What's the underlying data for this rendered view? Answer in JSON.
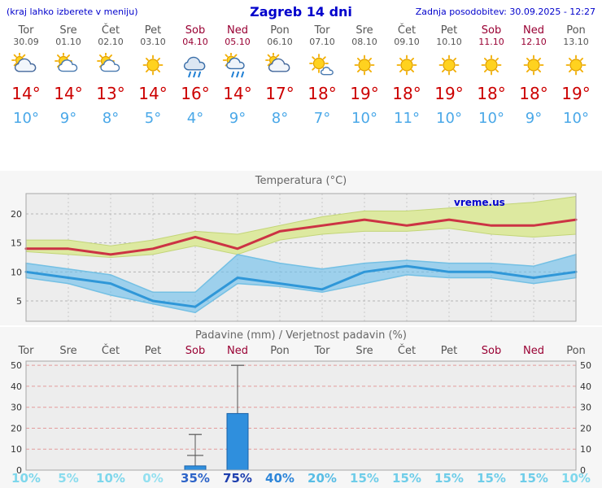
{
  "header": {
    "left_note": "(kraj lahko izberete v meniju)",
    "title": "Zagreb 14 dni",
    "last_update": "Zadnja posodobitev: 30.09.2025 - 12:27"
  },
  "colors": {
    "header_blue": "#0000cc",
    "weekday_text": "#555555",
    "weekend_text": "#990033",
    "temp_high": "#cc0000",
    "temp_low": "#4aa8e8",
    "max_line": "#cc3344",
    "max_band": "#dde9a0",
    "max_band_edge": "#c3d578",
    "min_line": "#2f97d8",
    "min_band": "rgba(108,191,235,0.62)",
    "min_band_edge": "#74c0e4",
    "bar_fill": "#2f8fdd",
    "bar_edge": "#1a62a8",
    "precip_grid": "#e39b9b",
    "chart_bg": "#f6f6f6",
    "plot_bg": "#ededed",
    "chart_title": "#666666"
  },
  "days": [
    {
      "name": "Tor",
      "date": "30.09",
      "weekend": false,
      "icon": "mostly-cloudy",
      "high": "14°",
      "low": "10°"
    },
    {
      "name": "Sre",
      "date": "01.10",
      "weekend": false,
      "icon": "partly-cloudy",
      "high": "14°",
      "low": "9°"
    },
    {
      "name": "Čet",
      "date": "02.10",
      "weekend": false,
      "icon": "partly-cloudy",
      "high": "13°",
      "low": "8°"
    },
    {
      "name": "Pet",
      "date": "03.10",
      "weekend": false,
      "icon": "sun",
      "high": "14°",
      "low": "5°"
    },
    {
      "name": "Sob",
      "date": "04.10",
      "weekend": true,
      "icon": "rain",
      "high": "16°",
      "low": "4°"
    },
    {
      "name": "Ned",
      "date": "05.10",
      "weekend": true,
      "icon": "sun-rain",
      "high": "14°",
      "low": "9°"
    },
    {
      "name": "Pon",
      "date": "06.10",
      "weekend": false,
      "icon": "mostly-cloudy",
      "high": "17°",
      "low": "8°"
    },
    {
      "name": "Tor",
      "date": "07.10",
      "weekend": false,
      "icon": "mostly-sunny",
      "high": "18°",
      "low": "7°"
    },
    {
      "name": "Sre",
      "date": "08.10",
      "weekend": false,
      "icon": "sun",
      "high": "19°",
      "low": "10°"
    },
    {
      "name": "Čet",
      "date": "09.10",
      "weekend": false,
      "icon": "sun",
      "high": "18°",
      "low": "11°"
    },
    {
      "name": "Pet",
      "date": "10.10",
      "weekend": false,
      "icon": "sun",
      "high": "19°",
      "low": "10°"
    },
    {
      "name": "Sob",
      "date": "11.10",
      "weekend": true,
      "icon": "sun",
      "high": "18°",
      "low": "10°"
    },
    {
      "name": "Ned",
      "date": "12.10",
      "weekend": true,
      "icon": "sun",
      "high": "18°",
      "low": "9°"
    },
    {
      "name": "Pon",
      "date": "13.10",
      "weekend": false,
      "icon": "sun",
      "high": "19°",
      "low": "10°"
    }
  ],
  "chart_data": [
    {
      "type": "line",
      "title": "Temperatura (°C)",
      "watermark": "vreme.us",
      "x_labels": [
        "Tor",
        "Sre",
        "Čet",
        "Pet",
        "Sob",
        "Ned",
        "Pon",
        "Tor",
        "Sre",
        "Čet",
        "Pet",
        "Sob",
        "Ned",
        "Pon"
      ],
      "ylim": [
        1.5,
        23.5
      ],
      "yticks": [
        5,
        10,
        15,
        20
      ],
      "grid": true,
      "legend": "none",
      "series": [
        {
          "name": "max_temp",
          "values": [
            14,
            14,
            13,
            14,
            16,
            14,
            17,
            18,
            19,
            18,
            19,
            18,
            18,
            19
          ]
        },
        {
          "name": "max_band_upper",
          "values": [
            15.5,
            15.5,
            14.5,
            15.5,
            17,
            16.5,
            18,
            19.5,
            20.5,
            20.5,
            21,
            21.5,
            22,
            23
          ]
        },
        {
          "name": "max_band_lower",
          "values": [
            13.5,
            13,
            12.5,
            13,
            14.5,
            13,
            15.5,
            16.5,
            17,
            17,
            17.5,
            16.5,
            16,
            16.5
          ]
        },
        {
          "name": "min_temp",
          "values": [
            10,
            9,
            8,
            5,
            4,
            9,
            8,
            7,
            10,
            11,
            10,
            10,
            9,
            10
          ]
        },
        {
          "name": "min_band_upper",
          "values": [
            11.5,
            10.5,
            9.5,
            6.5,
            6.5,
            13,
            11.5,
            10.5,
            11.5,
            12,
            11.5,
            11.5,
            11,
            13
          ]
        },
        {
          "name": "min_band_lower",
          "values": [
            9,
            8,
            6,
            4.5,
            3,
            8,
            7.5,
            6.5,
            8,
            9.5,
            9,
            9,
            8,
            9
          ]
        }
      ]
    },
    {
      "type": "bar",
      "title": "Padavine (mm) / Verjetnost padavin (%)",
      "categories": [
        "Tor",
        "Sre",
        "Čet",
        "Pet",
        "Sob",
        "Ned",
        "Pon",
        "Tor",
        "Sre",
        "Čet",
        "Pet",
        "Sob",
        "Ned",
        "Pon"
      ],
      "weekend": [
        false,
        false,
        false,
        false,
        true,
        true,
        false,
        false,
        false,
        false,
        false,
        true,
        true,
        false
      ],
      "ylim": [
        0,
        52
      ],
      "yticks": [
        0,
        10,
        20,
        30,
        40,
        50
      ],
      "bars_mm": [
        0,
        0,
        0,
        0,
        2,
        27,
        0,
        0,
        0,
        0,
        0,
        0,
        0,
        0
      ],
      "whisker_max": [
        0,
        0,
        0,
        0,
        17,
        50,
        0,
        0,
        0,
        0,
        0,
        0,
        0,
        0
      ],
      "whisker_mid": [
        0,
        0,
        0,
        0,
        7,
        0,
        0,
        0,
        0,
        0,
        0,
        0,
        0,
        0
      ],
      "probabilities": [
        {
          "label": "10%",
          "color": "#7ed7ec"
        },
        {
          "label": "5%",
          "color": "#8adcee"
        },
        {
          "label": "10%",
          "color": "#7ed7ec"
        },
        {
          "label": "0%",
          "color": "#93e0f0"
        },
        {
          "label": "35%",
          "color": "#2d64c8"
        },
        {
          "label": "75%",
          "color": "#1e3fae"
        },
        {
          "label": "40%",
          "color": "#2e86d9"
        },
        {
          "label": "20%",
          "color": "#58bde5"
        },
        {
          "label": "15%",
          "color": "#6fcde9"
        },
        {
          "label": "15%",
          "color": "#6fcde9"
        },
        {
          "label": "15%",
          "color": "#6fcde9"
        },
        {
          "label": "15%",
          "color": "#6fcde9"
        },
        {
          "label": "15%",
          "color": "#6fcde9"
        },
        {
          "label": "10%",
          "color": "#7ed7ec"
        }
      ]
    }
  ]
}
